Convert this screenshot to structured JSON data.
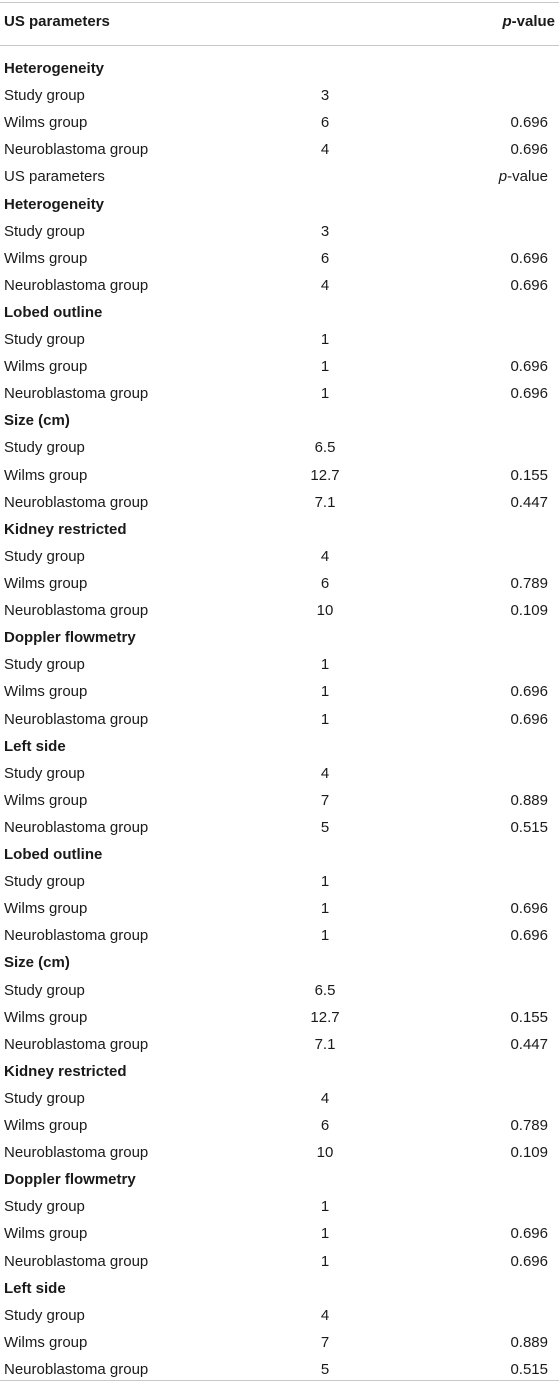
{
  "header": {
    "col_label": "US parameters",
    "col_p_italic": "p",
    "col_p_suffix": "-value"
  },
  "rows": [
    {
      "kind": "section",
      "label": "Heterogeneity"
    },
    {
      "kind": "data",
      "label": "Study group",
      "value": "3",
      "p": ""
    },
    {
      "kind": "data",
      "label": "Wilms group",
      "value": "6",
      "p": "0.696"
    },
    {
      "kind": "data",
      "label": "Neuroblastoma group",
      "value": "4",
      "p": "0.696"
    },
    {
      "kind": "subhdr",
      "label": "US parameters",
      "p_italic": "p",
      "p_suffix": "-value"
    },
    {
      "kind": "section",
      "label": "Heterogeneity"
    },
    {
      "kind": "data",
      "label": "Study group",
      "value": "3",
      "p": ""
    },
    {
      "kind": "data",
      "label": "Wilms group",
      "value": "6",
      "p": "0.696"
    },
    {
      "kind": "data",
      "label": "Neuroblastoma group",
      "value": "4",
      "p": "0.696"
    },
    {
      "kind": "section",
      "label": "Lobed outline"
    },
    {
      "kind": "data",
      "label": "Study group",
      "value": "1",
      "p": ""
    },
    {
      "kind": "data",
      "label": "Wilms group",
      "value": "1",
      "p": "0.696"
    },
    {
      "kind": "data",
      "label": "Neuroblastoma group",
      "value": "1",
      "p": "0.696"
    },
    {
      "kind": "section",
      "label": "Size (cm)"
    },
    {
      "kind": "data",
      "label": "Study group",
      "value": "6.5",
      "p": ""
    },
    {
      "kind": "data",
      "label": "Wilms group",
      "value": "12.7",
      "p": "0.155"
    },
    {
      "kind": "data",
      "label": "Neuroblastoma group",
      "value": "7.1",
      "p": "0.447"
    },
    {
      "kind": "section",
      "label": "Kidney restricted"
    },
    {
      "kind": "data",
      "label": "Study group",
      "value": "4",
      "p": ""
    },
    {
      "kind": "data",
      "label": "Wilms group",
      "value": "6",
      "p": "0.789"
    },
    {
      "kind": "data",
      "label": "Neuroblastoma group",
      "value": "10",
      "p": "0.109"
    },
    {
      "kind": "section",
      "label": "Doppler flowmetry"
    },
    {
      "kind": "data",
      "label": "Study group",
      "value": "1",
      "p": ""
    },
    {
      "kind": "data",
      "label": "Wilms group",
      "value": "1",
      "p": "0.696"
    },
    {
      "kind": "data",
      "label": "Neuroblastoma group",
      "value": "1",
      "p": "0.696"
    },
    {
      "kind": "section",
      "label": "Left side"
    },
    {
      "kind": "data",
      "label": "Study group",
      "value": "4",
      "p": ""
    },
    {
      "kind": "data",
      "label": "Wilms group",
      "value": "7",
      "p": "0.889"
    },
    {
      "kind": "data",
      "label": "Neuroblastoma group",
      "value": "5",
      "p": "0.515"
    },
    {
      "kind": "section",
      "label": "Lobed outline"
    },
    {
      "kind": "data",
      "label": "Study group",
      "value": "1",
      "p": ""
    },
    {
      "kind": "data",
      "label": "Wilms group",
      "value": "1",
      "p": "0.696"
    },
    {
      "kind": "data",
      "label": "Neuroblastoma group",
      "value": "1",
      "p": "0.696"
    },
    {
      "kind": "section",
      "label": "Size (cm)"
    },
    {
      "kind": "data",
      "label": "Study group",
      "value": "6.5",
      "p": ""
    },
    {
      "kind": "data",
      "label": "Wilms group",
      "value": "12.7",
      "p": "0.155"
    },
    {
      "kind": "data",
      "label": "Neuroblastoma group",
      "value": "7.1",
      "p": "0.447"
    },
    {
      "kind": "section",
      "label": "Kidney restricted"
    },
    {
      "kind": "data",
      "label": "Study group",
      "value": "4",
      "p": ""
    },
    {
      "kind": "data",
      "label": "Wilms group",
      "value": "6",
      "p": "0.789"
    },
    {
      "kind": "data",
      "label": "Neuroblastoma group",
      "value": "10",
      "p": "0.109"
    },
    {
      "kind": "section",
      "label": "Doppler flowmetry"
    },
    {
      "kind": "data",
      "label": "Study group",
      "value": "1",
      "p": ""
    },
    {
      "kind": "data",
      "label": "Wilms group",
      "value": "1",
      "p": "0.696"
    },
    {
      "kind": "data",
      "label": "Neuroblastoma group",
      "value": "1",
      "p": "0.696"
    },
    {
      "kind": "section",
      "label": "Left side"
    },
    {
      "kind": "data",
      "label": "Study group",
      "value": "4",
      "p": ""
    },
    {
      "kind": "data",
      "label": "Wilms group",
      "value": "7",
      "p": "0.889"
    },
    {
      "kind": "data",
      "label": "Neuroblastoma group",
      "value": "5",
      "p": "0.515"
    }
  ]
}
